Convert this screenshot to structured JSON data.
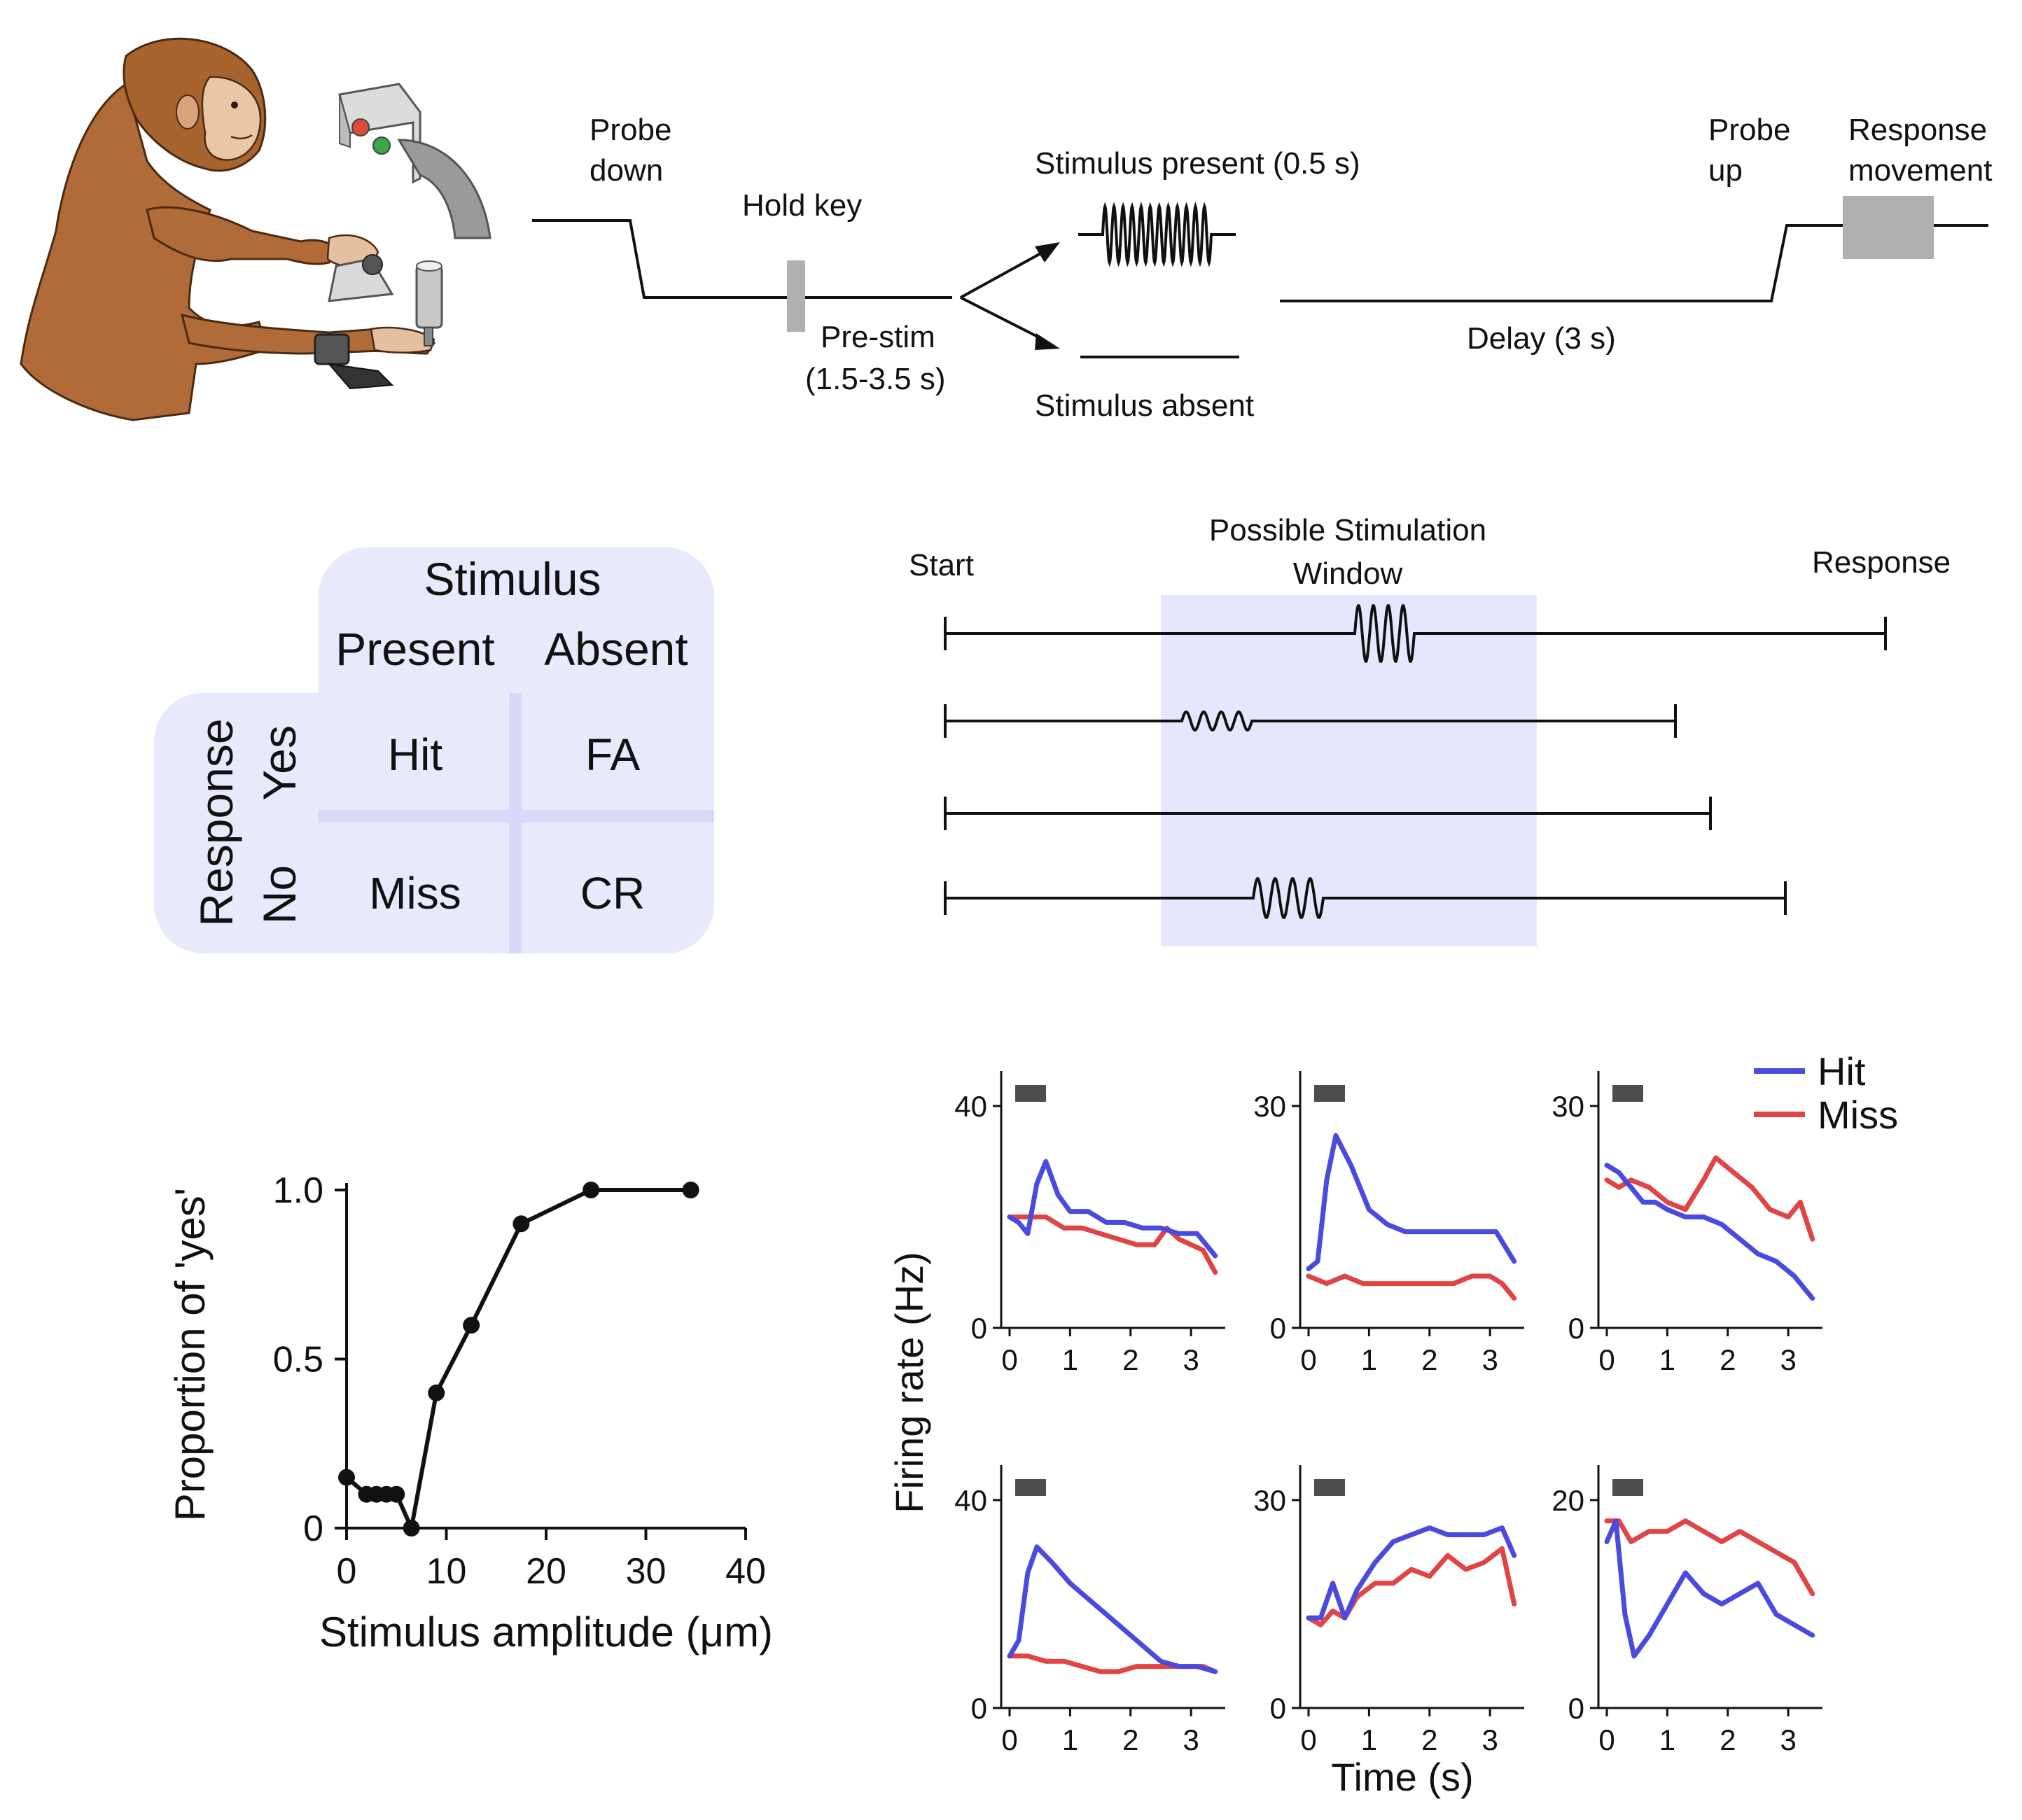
{
  "task": {
    "probe_down": "Probe down",
    "hold_key": "Hold key",
    "pre_stim": "Pre-stim",
    "pre_stim_range": "(1.5-3.5 s)",
    "stim_present": "Stimulus present (0.5 s)",
    "stim_absent": "Stimulus absent",
    "delay": "Delay (3 s)",
    "probe_up": "Probe up",
    "response_movement": "Response movement"
  },
  "table": {
    "stimulus": "Stimulus",
    "present": "Present",
    "absent": "Absent",
    "response": "Response",
    "yes": "Yes",
    "no": "No",
    "hit": "Hit",
    "fa": "FA",
    "miss": "Miss",
    "cr": "CR",
    "fill_color": "#e8e9fb",
    "divider_color": "#d8d9fa"
  },
  "timeline": {
    "start": "Start",
    "window_title": "Possible Stimulation",
    "window_title2": "Window",
    "response": "Response",
    "window_color": "#e6e7fc"
  },
  "chart_data": [
    {
      "type": "line",
      "xlabel": "Stimulus amplitude (μm)",
      "ylabel": "Proportion of  'yes'",
      "xlim": [
        0,
        40
      ],
      "ylim": [
        0,
        1
      ],
      "xticks": [
        0,
        10,
        20,
        30,
        40
      ],
      "yticks": [
        "0",
        "0.5",
        "1.0"
      ],
      "x": [
        0,
        2,
        3,
        4,
        5,
        6.5,
        9,
        12.5,
        17.5,
        24.5,
        34.5
      ],
      "y": [
        0.15,
        0.1,
        0.1,
        0.1,
        0.1,
        0.0,
        0.4,
        0.6,
        0.9,
        1.0,
        1.0
      ]
    },
    {
      "type": "line",
      "xlabel": "Time (s)",
      "ylabel": "Firing rate (Hz)",
      "legend": {
        "position": "top-right",
        "entries": [
          "Hit",
          "Miss"
        ]
      },
      "colors": {
        "Hit": "#4a4adf",
        "Miss": "#e04444"
      },
      "stimulus_bar_color": "#4d4d4d",
      "panels": [
        {
          "yticks": [
            "0",
            "40"
          ],
          "ymax": 40,
          "xticks": [
            "0",
            "1",
            "2",
            "3"
          ],
          "series": [
            {
              "name": "Hit",
              "x": [
                0,
                0.15,
                0.3,
                0.45,
                0.6,
                0.8,
                1.0,
                1.3,
                1.6,
                1.9,
                2.2,
                2.5,
                2.8,
                3.1,
                3.4
              ],
              "y": [
                20,
                19,
                17,
                26,
                30,
                24,
                21,
                21,
                19,
                19,
                18,
                18,
                17,
                17,
                13
              ]
            },
            {
              "name": "Miss",
              "x": [
                0,
                0.3,
                0.6,
                0.9,
                1.2,
                1.5,
                1.8,
                2.1,
                2.4,
                2.6,
                2.8,
                3.0,
                3.2,
                3.4
              ],
              "y": [
                20,
                20,
                20,
                18,
                18,
                17,
                16,
                15,
                15,
                18,
                16,
                15,
                14,
                10
              ]
            }
          ]
        },
        {
          "yticks": [
            "0",
            "30"
          ],
          "ymax": 30,
          "xticks": [
            "0",
            "1",
            "2",
            "3"
          ],
          "series": [
            {
              "name": "Hit",
              "x": [
                0,
                0.15,
                0.3,
                0.45,
                0.7,
                1.0,
                1.3,
                1.6,
                1.9,
                2.2,
                2.5,
                2.8,
                3.1,
                3.4
              ],
              "y": [
                8,
                9,
                20,
                26,
                22,
                16,
                14,
                13,
                13,
                13,
                13,
                13,
                13,
                9
              ]
            },
            {
              "name": "Miss",
              "x": [
                0,
                0.3,
                0.6,
                0.9,
                1.2,
                1.5,
                1.8,
                2.1,
                2.4,
                2.7,
                3.0,
                3.2,
                3.4
              ],
              "y": [
                7,
                6,
                7,
                6,
                6,
                6,
                6,
                6,
                6,
                7,
                7,
                6,
                4
              ]
            }
          ]
        },
        {
          "yticks": [
            "0",
            "30"
          ],
          "ymax": 30,
          "xticks": [
            "0",
            "1",
            "2",
            "3"
          ],
          "series": [
            {
              "name": "Hit",
              "x": [
                0,
                0.2,
                0.4,
                0.6,
                0.8,
                1.0,
                1.3,
                1.6,
                1.9,
                2.2,
                2.5,
                2.8,
                3.1,
                3.4
              ],
              "y": [
                22,
                21,
                19,
                17,
                17,
                16,
                15,
                15,
                14,
                12,
                10,
                9,
                7,
                4
              ]
            },
            {
              "name": "Miss",
              "x": [
                0,
                0.2,
                0.4,
                0.7,
                1.0,
                1.3,
                1.6,
                1.8,
                2.1,
                2.4,
                2.7,
                3.0,
                3.2,
                3.4
              ],
              "y": [
                20,
                19,
                20,
                19,
                17,
                16,
                20,
                23,
                21,
                19,
                16,
                15,
                17,
                12
              ]
            }
          ]
        },
        {
          "yticks": [
            "0",
            "40"
          ],
          "ymax": 40,
          "xticks": [
            "0",
            "1",
            "2",
            "3"
          ],
          "series": [
            {
              "name": "Hit",
              "x": [
                0,
                0.15,
                0.3,
                0.45,
                0.7,
                1.0,
                1.3,
                1.6,
                1.9,
                2.2,
                2.5,
                2.8,
                3.1,
                3.4
              ],
              "y": [
                10,
                13,
                26,
                31,
                28,
                24,
                21,
                18,
                15,
                12,
                9,
                8,
                8,
                7
              ]
            },
            {
              "name": "Miss",
              "x": [
                0,
                0.3,
                0.6,
                0.9,
                1.2,
                1.5,
                1.8,
                2.1,
                2.4,
                2.7,
                3.0,
                3.2,
                3.4
              ],
              "y": [
                10,
                10,
                9,
                9,
                8,
                7,
                7,
                8,
                8,
                8,
                8,
                8,
                7
              ]
            }
          ]
        },
        {
          "yticks": [
            "0",
            "30"
          ],
          "ymax": 30,
          "xticks": [
            "0",
            "1",
            "2",
            "3"
          ],
          "series": [
            {
              "name": "Hit",
              "x": [
                0,
                0.2,
                0.4,
                0.6,
                0.8,
                1.1,
                1.4,
                1.7,
                2.0,
                2.3,
                2.6,
                2.9,
                3.2,
                3.4
              ],
              "y": [
                13,
                13,
                18,
                13,
                17,
                21,
                24,
                25,
                26,
                25,
                25,
                25,
                26,
                22
              ]
            },
            {
              "name": "Miss",
              "x": [
                0,
                0.2,
                0.4,
                0.6,
                0.8,
                1.1,
                1.4,
                1.7,
                2.0,
                2.3,
                2.6,
                2.9,
                3.2,
                3.4
              ],
              "y": [
                13,
                12,
                14,
                13,
                16,
                18,
                18,
                20,
                19,
                22,
                20,
                21,
                23,
                15
              ]
            }
          ]
        },
        {
          "yticks": [
            "0",
            "20"
          ],
          "ymax": 20,
          "xticks": [
            "0",
            "1",
            "2",
            "3"
          ],
          "series": [
            {
              "name": "Hit",
              "x": [
                0,
                0.15,
                0.3,
                0.45,
                0.7,
                1.0,
                1.3,
                1.6,
                1.9,
                2.2,
                2.5,
                2.8,
                3.1,
                3.4
              ],
              "y": [
                16,
                18,
                9,
                5,
                7,
                10,
                13,
                11,
                10,
                11,
                12,
                9,
                8,
                7
              ]
            },
            {
              "name": "Miss",
              "x": [
                0,
                0.2,
                0.4,
                0.7,
                1.0,
                1.3,
                1.6,
                1.9,
                2.2,
                2.5,
                2.8,
                3.1,
                3.4
              ],
              "y": [
                18,
                18,
                16,
                17,
                17,
                18,
                17,
                16,
                17,
                16,
                15,
                14,
                11
              ]
            }
          ]
        }
      ]
    }
  ]
}
